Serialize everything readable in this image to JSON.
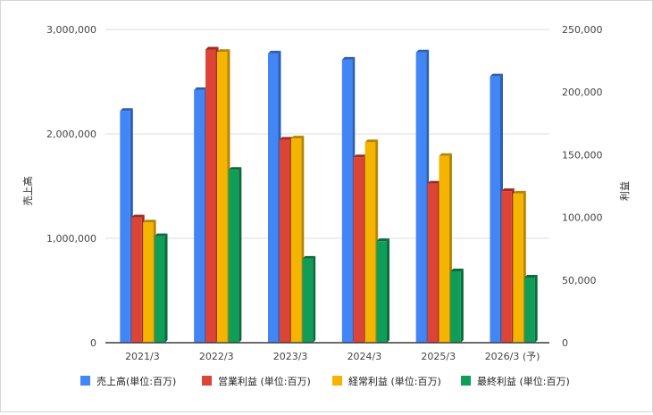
{
  "chart_data": {
    "type": "bar",
    "categories": [
      "2021/3",
      "2022/3",
      "2023/3",
      "2024/3",
      "2025/3",
      "2026/3 (予)"
    ],
    "series": [
      {
        "name": "売上高(単位:百万)",
        "axis": "left",
        "color": "#4285f4",
        "shade": "#2b5fb5",
        "values": [
          2220000,
          2420000,
          2770000,
          2710000,
          2780000,
          2550000
        ]
      },
      {
        "name": "営業利益 (単位:百万)",
        "axis": "right",
        "color": "#db4437",
        "shade": "#9e2b21",
        "values": [
          100000,
          234000,
          162000,
          148000,
          127000,
          121000
        ]
      },
      {
        "name": "経常利益 (単位:百万)",
        "axis": "right",
        "color": "#f4b400",
        "shade": "#b58400",
        "values": [
          96000,
          232000,
          163000,
          160000,
          149000,
          119000
        ]
      },
      {
        "name": "最終利益 (単位:百万)",
        "axis": "right",
        "color": "#0f9d58",
        "shade": "#0a6b3c",
        "values": [
          85000,
          138000,
          67000,
          81000,
          57000,
          52000
        ]
      }
    ],
    "y_left": {
      "label": "売上高",
      "range": [
        0,
        3000000
      ],
      "ticks": [
        "0",
        "1,000,000",
        "2,000,000",
        "3,000,000"
      ],
      "tick_values": [
        0,
        1000000,
        2000000,
        3000000
      ]
    },
    "y_right": {
      "label": "利益",
      "range": [
        0,
        250000
      ],
      "ticks": [
        "0",
        "50,000",
        "100,000",
        "150,000",
        "200,000",
        "250,000"
      ],
      "tick_values": [
        0,
        50000,
        100000,
        150000,
        200000,
        250000
      ]
    },
    "grid": true,
    "legend": "bottom"
  }
}
